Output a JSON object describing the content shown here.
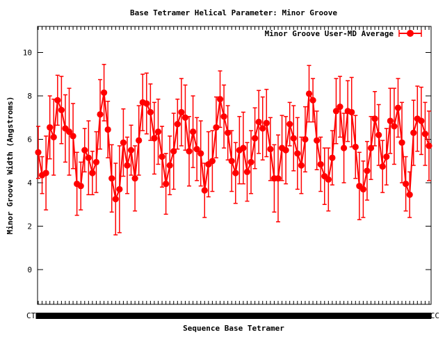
{
  "chart_data": {
    "type": "line",
    "title": "Base Tetramer Helical Parameter: Minor Groove",
    "xlabel": "Sequence Base Tetramer",
    "ylabel": "Minor Groove Width (Angstroms)",
    "ylim": [
      -1.6,
      11.2
    ],
    "yticks": [
      0,
      2,
      4,
      6,
      8,
      10
    ],
    "x_tick_first": "CTT",
    "x_tick_last": "CC",
    "grid": false,
    "legend_position": "top-right",
    "series": [
      {
        "name": "Minor Groove User-MD Average",
        "color": "#ff0000",
        "values": [
          5.4,
          4.35,
          4.45,
          6.55,
          6.1,
          7.8,
          7.35,
          6.5,
          6.35,
          6.15,
          3.95,
          3.85,
          5.5,
          5.15,
          4.45,
          4.95,
          7.15,
          8.15,
          6.45,
          4.2,
          3.25,
          3.7,
          5.85,
          4.8,
          5.5,
          4.2,
          5.95,
          7.7,
          7.65,
          7.25,
          6.05,
          6.35,
          5.2,
          3.95,
          4.8,
          5.45,
          6.7,
          7.25,
          7.0,
          5.45,
          6.35,
          5.55,
          5.35,
          3.65,
          4.85,
          5.0,
          6.55,
          7.85,
          7.05,
          6.3,
          5.0,
          4.45,
          5.5,
          5.6,
          4.5,
          4.95,
          6.05,
          6.8,
          6.5,
          6.75,
          5.55,
          4.2,
          4.2,
          5.6,
          5.5,
          6.7,
          6.05,
          5.35,
          4.8,
          6.0,
          8.1,
          7.8,
          5.95,
          4.85,
          4.3,
          4.15,
          5.15,
          7.3,
          7.5,
          5.6,
          7.3,
          7.25,
          5.65,
          3.85,
          3.7,
          4.55,
          5.6,
          6.95,
          6.2,
          4.75,
          5.2,
          6.85,
          6.6,
          7.45,
          5.85,
          3.95,
          3.45,
          6.3,
          6.95,
          6.85,
          6.25,
          5.7
        ],
        "errors": [
          1.2,
          0.85,
          1.7,
          1.45,
          1.75,
          1.15,
          1.55,
          1.55,
          2.0,
          1.5,
          1.45,
          1.1,
          1.0,
          1.7,
          1.0,
          1.4,
          1.6,
          1.3,
          1.3,
          1.55,
          1.65,
          2.0,
          1.55,
          1.3,
          1.15,
          1.5,
          1.6,
          1.3,
          1.4,
          1.3,
          1.65,
          1.5,
          1.4,
          1.4,
          1.35,
          1.75,
          1.15,
          1.55,
          1.5,
          1.6,
          1.65,
          1.45,
          1.5,
          1.25,
          1.5,
          1.4,
          1.4,
          1.3,
          1.45,
          1.25,
          1.4,
          1.4,
          1.55,
          1.65,
          1.35,
          1.45,
          1.4,
          1.45,
          1.45,
          1.55,
          1.45,
          1.55,
          2.0,
          1.5,
          1.55,
          1.0,
          1.5,
          1.65,
          1.3,
          1.5,
          1.3,
          1.0,
          1.35,
          1.25,
          1.3,
          1.45,
          1.25,
          1.5,
          1.4,
          1.6,
          1.4,
          1.6,
          1.45,
          1.55,
          1.3,
          1.35,
          1.45,
          1.25,
          1.4,
          1.2,
          1.3,
          1.5,
          1.75,
          1.35,
          1.85,
          1.25,
          1.05,
          1.5,
          1.5,
          1.55,
          1.45,
          1.6
        ]
      }
    ]
  }
}
